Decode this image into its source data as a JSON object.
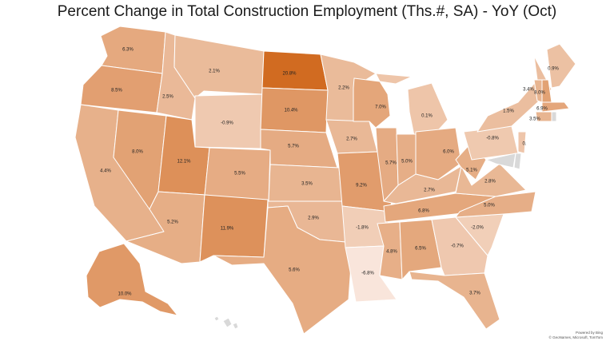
{
  "title": "Percent Change in Total Construction Employment (Ths.#, SA) - YoY (Oct)",
  "credit": {
    "line1": "Powered by Bing",
    "line2": "© GeoNames, Microsoft, TomTom"
  },
  "colors": {
    "low": "#f9e6dc",
    "mid": "#e9b794",
    "high": "#d16a20",
    "none": "#d9d9d9",
    "border": "#ffffff"
  },
  "chart_data": {
    "type": "choropleth",
    "unit": "%",
    "regions": [
      {
        "id": "WA",
        "label": "6.3%",
        "value": 6.3
      },
      {
        "id": "OR",
        "label": "8.5%",
        "value": 8.5
      },
      {
        "id": "CA",
        "label": "4.4%",
        "value": 4.4
      },
      {
        "id": "NV",
        "label": "8.0%",
        "value": 8.0
      },
      {
        "id": "ID",
        "label": "2.5%",
        "value": 2.5
      },
      {
        "id": "MT",
        "label": "2.1%",
        "value": 2.1
      },
      {
        "id": "WY",
        "label": "-0.9%",
        "value": -0.9
      },
      {
        "id": "UT",
        "label": "12.1%",
        "value": 12.1
      },
      {
        "id": "AZ",
        "label": "5.2%",
        "value": 5.2
      },
      {
        "id": "CO",
        "label": "5.5%",
        "value": 5.5
      },
      {
        "id": "NM",
        "label": "11.9%",
        "value": 11.9
      },
      {
        "id": "ND",
        "label": "20.8%",
        "value": 20.8
      },
      {
        "id": "SD",
        "label": "10.4%",
        "value": 10.4
      },
      {
        "id": "NE",
        "label": "5.7%",
        "value": 5.7
      },
      {
        "id": "KS",
        "label": "3.5%",
        "value": 3.5
      },
      {
        "id": "OK",
        "label": "2.9%",
        "value": 2.9
      },
      {
        "id": "TX",
        "label": "5.6%",
        "value": 5.6
      },
      {
        "id": "MN",
        "label": "2.2%",
        "value": 2.2
      },
      {
        "id": "IA",
        "label": "2.7%",
        "value": 2.7
      },
      {
        "id": "MO",
        "label": "9.2%",
        "value": 9.2
      },
      {
        "id": "AR",
        "label": "-1.8%",
        "value": -1.8
      },
      {
        "id": "LA",
        "label": "-6.8%",
        "value": -6.8
      },
      {
        "id": "WI",
        "label": "7.0%",
        "value": 7.0
      },
      {
        "id": "IL",
        "label": "5.7%",
        "value": 5.7
      },
      {
        "id": "MI",
        "label": "0.1%",
        "value": 0.1
      },
      {
        "id": "IN",
        "label": "5.0%",
        "value": 5.0
      },
      {
        "id": "OH",
        "label": "6.0%",
        "value": 6.0
      },
      {
        "id": "KY",
        "label": "2.7%",
        "value": 2.7
      },
      {
        "id": "TN",
        "label": "6.8%",
        "value": 6.8
      },
      {
        "id": "MS",
        "label": "4.8%",
        "value": 4.8
      },
      {
        "id": "AL",
        "label": "6.5%",
        "value": 6.5
      },
      {
        "id": "GA",
        "label": "-0.7%",
        "value": -0.7
      },
      {
        "id": "FL",
        "label": "3.7%",
        "value": 3.7
      },
      {
        "id": "SC",
        "label": "-2.0%",
        "value": -2.0
      },
      {
        "id": "NC",
        "label": "5.0%",
        "value": 5.0
      },
      {
        "id": "VA",
        "label": "2.8%",
        "value": 2.8
      },
      {
        "id": "WV",
        "label": "5.1%",
        "value": 5.1
      },
      {
        "id": "PA",
        "label": "-0.8%",
        "value": -0.8
      },
      {
        "id": "NY",
        "label": "1.5%",
        "value": 1.5
      },
      {
        "id": "VT",
        "label": "3.4%",
        "value": 3.4
      },
      {
        "id": "NH",
        "label": "8.0%",
        "value": 8.0
      },
      {
        "id": "ME",
        "label": "0.9%",
        "value": 0.9
      },
      {
        "id": "MA",
        "label": "6.9%",
        "value": 6.9
      },
      {
        "id": "CT",
        "label": "3.5%",
        "value": 3.5
      },
      {
        "id": "NJ",
        "label": "0.",
        "value": 0.0
      },
      {
        "id": "AK",
        "label": "10.0%",
        "value": 10.0
      },
      {
        "id": "HI",
        "label": "",
        "value": null
      },
      {
        "id": "MD",
        "label": "",
        "value": null
      },
      {
        "id": "DE",
        "label": "",
        "value": null
      },
      {
        "id": "RI",
        "label": "",
        "value": null
      }
    ]
  }
}
